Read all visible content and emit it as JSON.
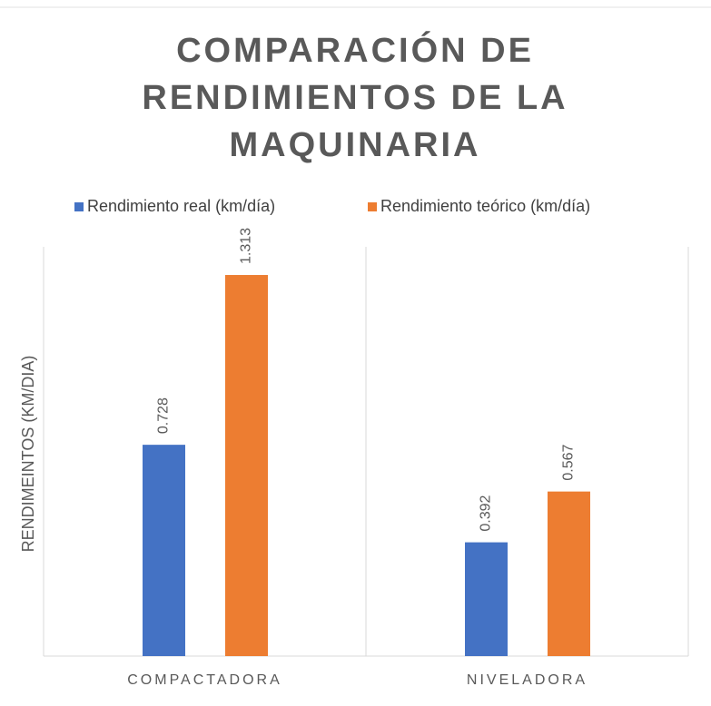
{
  "chart_data": {
    "type": "bar",
    "title": "COMPARACIÓN DE RENDIMIENTOS DE LA MAQUINARIA",
    "y_label": "RENDIMEINTOS (KM/DIA)",
    "categories": [
      "COMPACTADORA",
      "NIVELADORA"
    ],
    "series": [
      {
        "name": "Rendimiento real (km/día)",
        "color": "#4472c4",
        "values": [
          0.728,
          0.392
        ]
      },
      {
        "name": "Rendimiento teórico (km/día)",
        "color": "#ed7d31",
        "values": [
          1.313,
          0.567
        ]
      }
    ],
    "ylim": [
      0,
      1.41
    ],
    "legend": "top",
    "grid": false
  }
}
